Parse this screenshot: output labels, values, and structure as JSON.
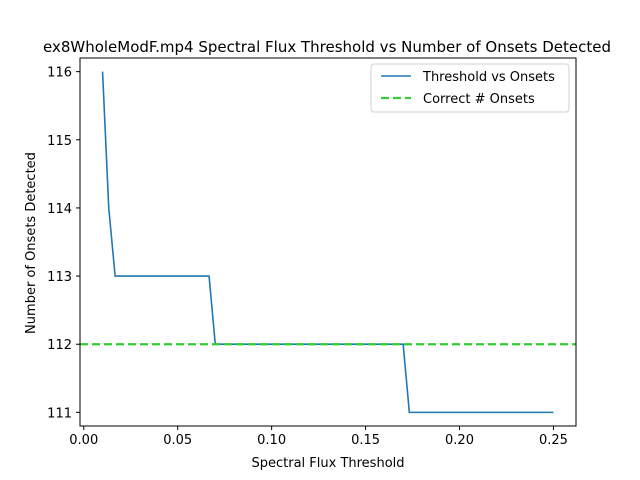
{
  "chart_data": {
    "type": "line",
    "title": "ex8WholeModF.mp4 Spectral Flux Threshold vs Number of Onsets Detected",
    "xlabel": "Spectral Flux Threshold",
    "ylabel": "Number of Onsets Detected",
    "xlim": [
      -0.002,
      0.262
    ],
    "ylim": [
      110.8,
      116.2
    ],
    "xticks": [
      0.0,
      0.05,
      0.1,
      0.15,
      0.2,
      0.25
    ],
    "xtick_labels": [
      "0.00",
      "0.05",
      "0.10",
      "0.15",
      "0.20",
      "0.25"
    ],
    "yticks": [
      111,
      112,
      113,
      114,
      115,
      116
    ],
    "ytick_labels": [
      "111",
      "112",
      "113",
      "114",
      "115",
      "116"
    ],
    "grid": false,
    "legend_position": "top-right",
    "series": [
      {
        "name": "Threshold vs Onsets",
        "color": "#1f77b4",
        "style": "solid",
        "x": [
          0.01,
          0.0133,
          0.0167,
          0.02,
          0.0233,
          0.0267,
          0.03,
          0.0333,
          0.0367,
          0.04,
          0.0433,
          0.0467,
          0.05,
          0.0533,
          0.0567,
          0.06,
          0.0633,
          0.0667,
          0.07,
          0.0733,
          0.0767,
          0.08,
          0.0833,
          0.0867,
          0.09,
          0.0933,
          0.0967,
          0.1,
          0.1033,
          0.1067,
          0.11,
          0.1133,
          0.1167,
          0.12,
          0.1233,
          0.1267,
          0.13,
          0.1333,
          0.1367,
          0.14,
          0.1433,
          0.1467,
          0.15,
          0.1533,
          0.1567,
          0.16,
          0.1633,
          0.1667,
          0.17,
          0.1733,
          0.1767,
          0.18,
          0.1833,
          0.1867,
          0.19,
          0.1933,
          0.1967,
          0.2,
          0.2033,
          0.2067,
          0.21,
          0.2133,
          0.2167,
          0.22,
          0.2233,
          0.2267,
          0.23,
          0.2333,
          0.2367,
          0.24,
          0.2433,
          0.2467,
          0.25
        ],
        "y": [
          116,
          114,
          113,
          113,
          113,
          113,
          113,
          113,
          113,
          113,
          113,
          113,
          113,
          113,
          113,
          113,
          113,
          113,
          112,
          112,
          112,
          112,
          112,
          112,
          112,
          112,
          112,
          112,
          112,
          112,
          112,
          112,
          112,
          112,
          112,
          112,
          112,
          112,
          112,
          112,
          112,
          112,
          112,
          112,
          112,
          112,
          112,
          112,
          112,
          111,
          111,
          111,
          111,
          111,
          111,
          111,
          111,
          111,
          111,
          111,
          111,
          111,
          111,
          111,
          111,
          111,
          111,
          111,
          111,
          111,
          111,
          111,
          111
        ]
      },
      {
        "name": "Correct # Onsets",
        "color": "#32cd32",
        "style": "dashed",
        "horizontal_line": 112
      }
    ]
  }
}
